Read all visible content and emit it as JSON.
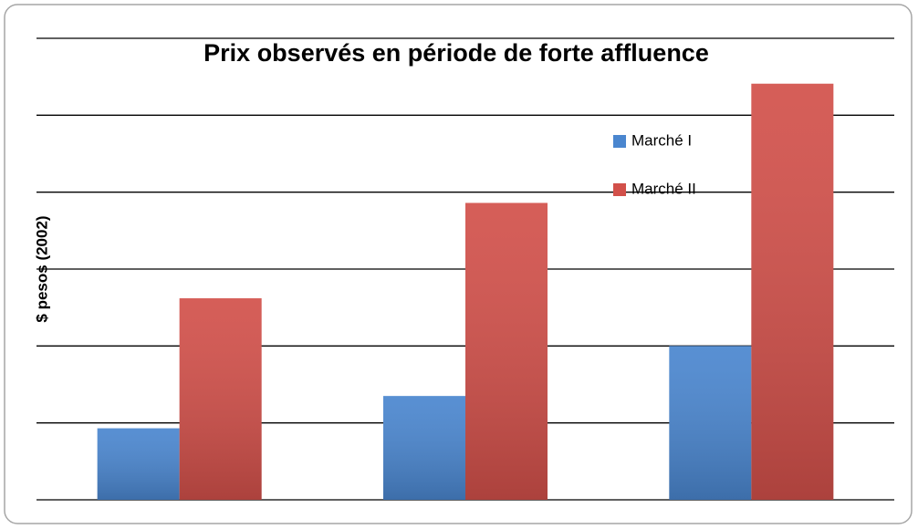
{
  "chart_data": {
    "type": "bar",
    "title": "Prix observés en période de forte affluence",
    "y_label": "$ pesos (2002)",
    "categories": [
      null,
      null,
      null
    ],
    "series": [
      {
        "name": "Marché I",
        "color": "#4a86cf",
        "values": [
          0.93,
          1.35,
          2.0
        ]
      },
      {
        "name": "Marché II",
        "color": "#d2504a",
        "values": [
          2.62,
          3.86,
          5.41
        ]
      }
    ],
    "ylim": [
      0,
      6
    ],
    "yticks": [
      0,
      1,
      2,
      3,
      4,
      5,
      6
    ],
    "grid": true,
    "legend": "top-right"
  }
}
